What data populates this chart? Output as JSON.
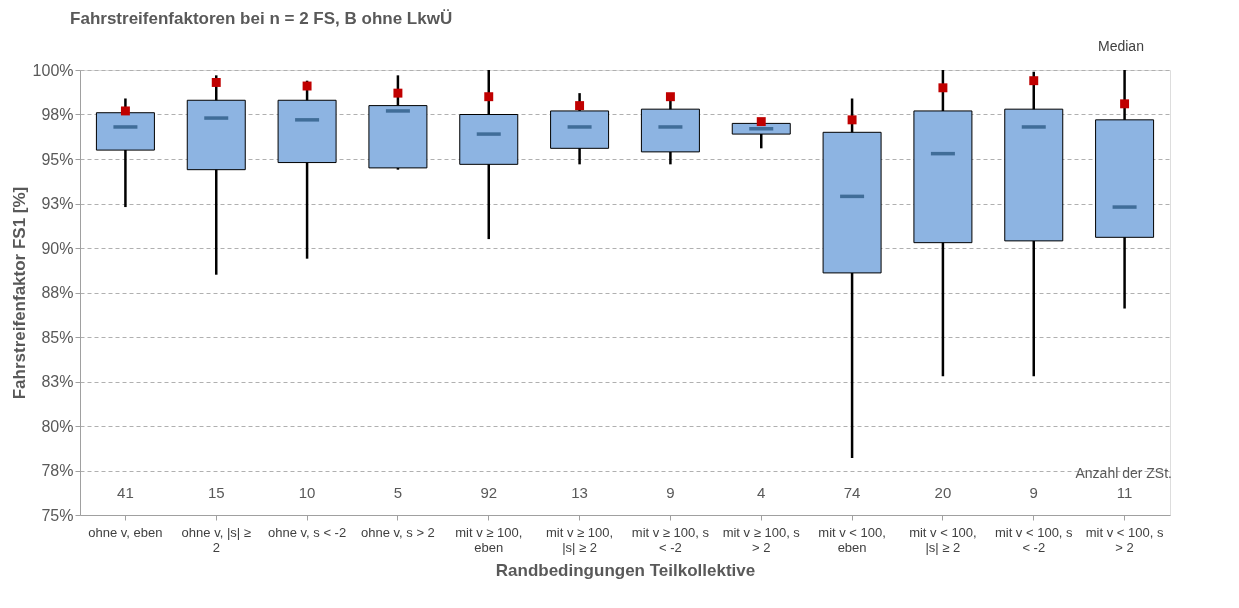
{
  "chart_data": {
    "type": "box",
    "title": "Fahrstreifenfaktoren bei n = 2 FS, B ohne LkwÜ",
    "xlabel": "Randbedingungen Teilkollektive",
    "ylabel": "Fahrstreifenfaktor FS1 [%]",
    "categories": [
      "ohne v, eben",
      "ohne v, |s| ≥ 2",
      "ohne v, s < -2",
      "ohne v, s > 2",
      "mit v ≥ 100, eben",
      "mit v ≥ 100, |s| ≥ 2",
      "mit v ≥ 100, s < -2",
      "mit v ≥ 100, s > 2",
      "mit v < 100, eben",
      "mit v < 100, |s| ≥ 2",
      "mit v < 100, s < -2",
      "mit v < 100, s > 2"
    ],
    "series": [
      {
        "name": "Median",
        "color": "#8db4e2",
        "boxes": [
          {
            "low": 92.3,
            "q1": 95.5,
            "median": 96.8,
            "q3": 97.6,
            "high": 98.4
          },
          {
            "low": 88.5,
            "q1": 94.4,
            "median": 97.3,
            "q3": 98.3,
            "high": 99.7
          },
          {
            "low": 89.4,
            "q1": 94.8,
            "median": 97.2,
            "q3": 98.3,
            "high": 99.4
          },
          {
            "low": 94.4,
            "q1": 94.5,
            "median": 97.7,
            "q3": 98.0,
            "high": 99.7
          },
          {
            "low": 90.5,
            "q1": 94.7,
            "median": 96.4,
            "q3": 97.5,
            "high": 100
          },
          {
            "low": 94.7,
            "q1": 95.6,
            "median": 96.8,
            "q3": 97.7,
            "high": 98.7
          },
          {
            "low": 94.7,
            "q1": 95.4,
            "median": 96.8,
            "q3": 97.8,
            "high": 98.7
          },
          {
            "low": 95.6,
            "q1": 96.4,
            "median": 96.7,
            "q3": 97.0,
            "high": 97.2
          },
          {
            "low": 78.2,
            "q1": 88.6,
            "median": 92.9,
            "q3": 96.5,
            "high": 98.4
          },
          {
            "low": 82.8,
            "q1": 90.3,
            "median": 95.3,
            "q3": 97.7,
            "high": 100
          },
          {
            "low": 82.8,
            "q1": 90.4,
            "median": 96.8,
            "q3": 97.8,
            "high": 99.9
          },
          {
            "low": 86.6,
            "q1": 90.6,
            "median": 92.3,
            "q3": 97.2,
            "high": 100
          }
        ]
      },
      {
        "type": "scatter",
        "color": "#c00000",
        "marker": "square",
        "x": [
          "ohne v, eben",
          "ohne v, |s| ≥ 2",
          "ohne v, s < -2",
          "ohne v, s > 2",
          "mit v ≥ 100, eben",
          "mit v ≥ 100, |s| ≥ 2",
          "mit v ≥ 100, s < -2",
          "mit v ≥ 100, s > 2",
          "mit v < 100, eben",
          "mit v < 100, |s| ≥ 2",
          "mit v < 100, s < -2",
          "mit v < 100, s > 2"
        ],
        "values": [
          97.7,
          99.3,
          99.1,
          98.7,
          98.5,
          98.0,
          98.5,
          97.1,
          97.2,
          99.0,
          99.4,
          98.1
        ]
      }
    ],
    "ylim": [
      75,
      100
    ],
    "yticks": [
      {
        "value": 75,
        "label": "75%"
      },
      {
        "value": 77.5,
        "label": "78%"
      },
      {
        "value": 80,
        "label": "80%"
      },
      {
        "value": 82.5,
        "label": "83%"
      },
      {
        "value": 85,
        "label": "85%"
      },
      {
        "value": 87.5,
        "label": "88%"
      },
      {
        "value": 90,
        "label": "90%"
      },
      {
        "value": 92.5,
        "label": "93%"
      },
      {
        "value": 95,
        "label": "95%"
      },
      {
        "value": 97.5,
        "label": "98%"
      },
      {
        "value": 100,
        "label": "100%"
      }
    ],
    "grid": "y",
    "legend": "top right",
    "annotations": [
      "Anzahl der ZSt.",
      "41",
      "15",
      "10",
      "5",
      "92",
      "13",
      "9",
      "4",
      "74",
      "20",
      "9",
      "11"
    ]
  }
}
